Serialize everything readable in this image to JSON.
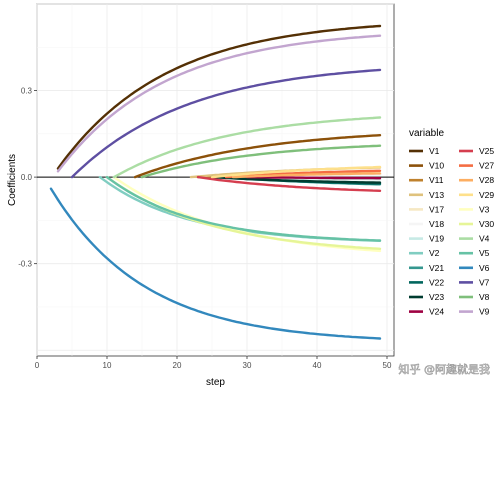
{
  "chart_data": {
    "type": "line",
    "title": "",
    "xlabel": "step",
    "ylabel": "Coefficients",
    "xlim": [
      0,
      51
    ],
    "ylim": [
      -0.62,
      0.6
    ],
    "x_ticks": [
      0,
      10,
      20,
      30,
      40,
      50
    ],
    "x_tick_labels": [
      "0",
      "10",
      "20",
      "30",
      "40",
      "50"
    ],
    "y_ticks": [
      -0.3,
      0,
      0.3
    ],
    "y_tick_labels": [
      "-0.3",
      "0.0",
      "0.3"
    ],
    "grid": true,
    "zero_line": true,
    "legend": {
      "title": "variable",
      "position": "right",
      "columns": 2
    },
    "series": [
      {
        "name": "V1",
        "color": "#543005",
        "start": 3,
        "end": 0.55,
        "rate": 0.065,
        "start_y": 0.03
      },
      {
        "name": "V10",
        "color": "#8c510a",
        "start": 14,
        "end": 0.17,
        "rate": 0.055,
        "start_y": 0.0
      },
      {
        "name": "V11",
        "color": "#bf812d",
        "start": 23,
        "end": 0.012,
        "rate": 0.09,
        "start_y": 0.0
      },
      {
        "name": "V13",
        "color": "#dfc27d",
        "start": 22,
        "end": 0.045,
        "rate": 0.05,
        "start_y": 0.0
      },
      {
        "name": "V17",
        "color": "#f6e8c3",
        "start": 28,
        "end": 0.03,
        "rate": 0.06,
        "start_y": 0.0
      },
      {
        "name": "V18",
        "color": "#f5f5f5",
        "start": 30,
        "end": 0.01,
        "rate": 0.08,
        "start_y": 0.0
      },
      {
        "name": "V19",
        "color": "#c7eae5",
        "start": 32,
        "end": -0.01,
        "rate": 0.08,
        "start_y": 0.0
      },
      {
        "name": "V2",
        "color": "#80cdc1",
        "start": 9,
        "end": -0.23,
        "rate": 0.08,
        "start_y": 0.0
      },
      {
        "name": "V21",
        "color": "#35978f",
        "start": 28,
        "end": -0.035,
        "rate": 0.06,
        "start_y": 0.0
      },
      {
        "name": "V22",
        "color": "#01665e",
        "start": 26,
        "end": -0.03,
        "rate": 0.06,
        "start_y": 0.0
      },
      {
        "name": "V23",
        "color": "#003c30",
        "start": 25,
        "end": -0.025,
        "rate": 0.06,
        "start_y": 0.0
      },
      {
        "name": "V24",
        "color": "#9e0142",
        "start": 30,
        "end": -0.005,
        "rate": 0.07,
        "start_y": 0.0
      },
      {
        "name": "V25",
        "color": "#d53e4f",
        "start": 23,
        "end": -0.06,
        "rate": 0.06,
        "start_y": 0.0
      },
      {
        "name": "V27",
        "color": "#f46d43",
        "start": 27,
        "end": 0.03,
        "rate": 0.06,
        "start_y": 0.0
      },
      {
        "name": "V28",
        "color": "#fdae61",
        "start": 28,
        "end": 0.018,
        "rate": 0.06,
        "start_y": 0.0
      },
      {
        "name": "V29",
        "color": "#fee08b",
        "start": 25,
        "end": 0.05,
        "rate": 0.05,
        "start_y": 0.0
      },
      {
        "name": "V3",
        "color": "#ffffbf",
        "start": 11,
        "end": -0.285,
        "rate": 0.06,
        "start_y": 0.0
      },
      {
        "name": "V30",
        "color": "#e6f598",
        "start": 10,
        "end": -0.27,
        "rate": 0.065,
        "start_y": 0.0
      },
      {
        "name": "V4",
        "color": "#abdda4",
        "start": 11,
        "end": 0.23,
        "rate": 0.06,
        "start_y": 0.0
      },
      {
        "name": "V5",
        "color": "#66c2a5",
        "start": 10,
        "end": -0.23,
        "rate": 0.08,
        "start_y": 0.0
      },
      {
        "name": "V6",
        "color": "#3288bd",
        "start": 2,
        "end": -0.575,
        "rate": 0.075,
        "start_y": -0.04
      },
      {
        "name": "V7",
        "color": "#5e4fa2",
        "start": 5,
        "end": 0.4,
        "rate": 0.06,
        "start_y": 0.0
      },
      {
        "name": "V8",
        "color": "#7fbf7b",
        "start": 15,
        "end": 0.125,
        "rate": 0.06,
        "start_y": 0.0
      },
      {
        "name": "V9",
        "color": "#c2a5cf",
        "start": 3,
        "end": 0.515,
        "rate": 0.065,
        "start_y": 0.02
      }
    ],
    "x_end": 49
  },
  "watermark": "知乎 @阿趣就是我"
}
